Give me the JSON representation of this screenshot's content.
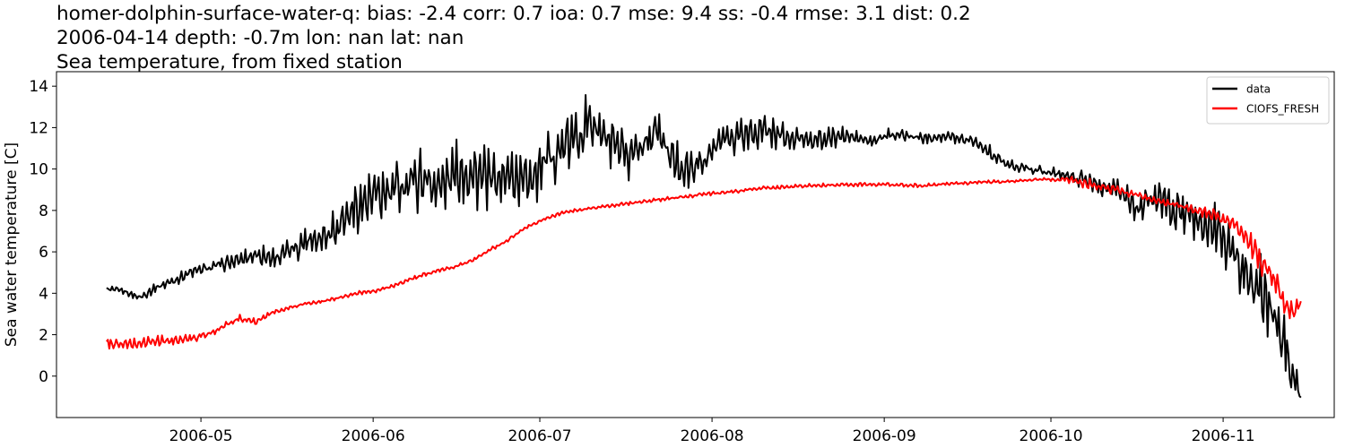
{
  "title_lines": [
    "homer-dolphin-surface-water-q: bias: -2.4  corr: 0.7  ioa: 0.7  mse: 9.4  ss: -0.4  rmse: 3.1  dist: 0.2",
    "2006-04-14 depth: -0.7m lon: nan lat: nan",
    "Sea temperature, from fixed station"
  ],
  "chart_data": {
    "type": "line",
    "title": "homer-dolphin-surface-water-q: bias: -2.4  corr: 0.7  ioa: 0.7  mse: 9.4  ss: -0.4  rmse: 3.1  dist: 0.2\n2006-04-14 depth: -0.7m lon: nan lat: nan\nSea temperature, from fixed station",
    "xlabel": "",
    "ylabel": "Sea water temperature [C]",
    "x_type": "date",
    "xlim": [
      "2006-04-05",
      "2006-11-21"
    ],
    "ylim": [
      -2.0,
      14.7
    ],
    "x_ticks": [
      "2006-05-01",
      "2006-06-01",
      "2006-07-01",
      "2006-08-01",
      "2006-09-01",
      "2006-10-01",
      "2006-11-01"
    ],
    "x_tick_labels": [
      "2006-05",
      "2006-06",
      "2006-07",
      "2006-08",
      "2006-09",
      "2006-10",
      "2006-11"
    ],
    "y_ticks": [
      0,
      2,
      4,
      6,
      8,
      10,
      12,
      14
    ],
    "y_tick_labels": [
      "0",
      "2",
      "4",
      "6",
      "8",
      "10",
      "12",
      "14"
    ],
    "grid": false,
    "legend": "top-right",
    "series": [
      {
        "name": "data",
        "color": "#000000",
        "x": [
          "2006-04-14",
          "2006-04-17",
          "2006-04-20",
          "2006-04-23",
          "2006-04-26",
          "2006-04-29",
          "2006-05-02",
          "2006-05-05",
          "2006-05-08",
          "2006-05-11",
          "2006-05-14",
          "2006-05-17",
          "2006-05-20",
          "2006-05-23",
          "2006-05-26",
          "2006-05-29",
          "2006-06-01",
          "2006-06-04",
          "2006-06-07",
          "2006-06-10",
          "2006-06-13",
          "2006-06-16",
          "2006-06-19",
          "2006-06-22",
          "2006-06-25",
          "2006-06-28",
          "2006-07-01",
          "2006-07-04",
          "2006-07-07",
          "2006-07-10",
          "2006-07-13",
          "2006-07-16",
          "2006-07-19",
          "2006-07-22",
          "2006-07-25",
          "2006-07-28",
          "2006-07-31",
          "2006-08-03",
          "2006-08-06",
          "2006-08-09",
          "2006-08-12",
          "2006-08-15",
          "2006-08-18",
          "2006-08-21",
          "2006-08-24",
          "2006-08-27",
          "2006-08-30",
          "2006-09-02",
          "2006-09-05",
          "2006-09-08",
          "2006-09-11",
          "2006-09-14",
          "2006-09-17",
          "2006-09-20",
          "2006-09-23",
          "2006-09-26",
          "2006-09-29",
          "2006-10-02",
          "2006-10-05",
          "2006-10-08",
          "2006-10-11",
          "2006-10-14",
          "2006-10-17",
          "2006-10-20",
          "2006-10-23",
          "2006-10-26",
          "2006-10-29",
          "2006-11-01",
          "2006-11-04",
          "2006-11-07",
          "2006-11-10",
          "2006-11-13",
          "2006-11-15"
        ],
        "y": [
          4.2,
          4.1,
          3.8,
          4.3,
          4.6,
          5.0,
          5.2,
          5.4,
          5.6,
          5.9,
          5.7,
          6.0,
          6.6,
          6.8,
          7.4,
          8.2,
          8.6,
          8.8,
          9.4,
          9.6,
          9.1,
          9.9,
          9.8,
          9.4,
          9.7,
          9.5,
          10.0,
          10.8,
          11.4,
          12.4,
          11.3,
          10.4,
          11.2,
          11.9,
          10.4,
          9.9,
          10.5,
          11.5,
          11.6,
          11.8,
          11.8,
          11.4,
          11.5,
          11.4,
          11.6,
          11.5,
          11.3,
          11.7,
          11.6,
          11.5,
          11.6,
          11.5,
          11.4,
          10.8,
          10.2,
          10.1,
          9.9,
          9.8,
          9.6,
          9.4,
          9.1,
          8.8,
          8.0,
          8.7,
          8.0,
          7.6,
          7.3,
          6.8,
          5.5,
          4.3,
          3.2,
          0.8,
          -1.0
        ],
        "spread": [
          0.2,
          0.2,
          0.2,
          0.3,
          0.3,
          0.3,
          0.3,
          0.4,
          0.4,
          0.6,
          0.6,
          0.8,
          1.0,
          1.2,
          1.3,
          1.4,
          1.6,
          1.6,
          1.7,
          1.8,
          1.6,
          1.6,
          1.8,
          1.7,
          1.6,
          1.6,
          1.6,
          1.6,
          1.6,
          1.6,
          1.7,
          1.8,
          1.6,
          1.4,
          1.2,
          1.1,
          1.0,
          0.9,
          1.0,
          1.0,
          0.9,
          0.7,
          0.6,
          0.6,
          0.5,
          0.4,
          0.3,
          0.3,
          0.3,
          0.3,
          0.3,
          0.3,
          0.3,
          0.4,
          0.4,
          0.3,
          0.3,
          0.3,
          0.4,
          0.5,
          0.6,
          0.8,
          0.9,
          1.0,
          1.1,
          1.3,
          1.4,
          1.5,
          1.8,
          2.0,
          2.2,
          2.0,
          0.4
        ]
      },
      {
        "name": "CIOFS_FRESH",
        "color": "#ff0000",
        "x": [
          "2006-04-14",
          "2006-04-17",
          "2006-04-20",
          "2006-04-23",
          "2006-04-26",
          "2006-04-29",
          "2006-05-02",
          "2006-05-05",
          "2006-05-08",
          "2006-05-11",
          "2006-05-14",
          "2006-05-17",
          "2006-05-20",
          "2006-05-23",
          "2006-05-26",
          "2006-05-29",
          "2006-06-01",
          "2006-06-04",
          "2006-06-07",
          "2006-06-10",
          "2006-06-13",
          "2006-06-16",
          "2006-06-19",
          "2006-06-22",
          "2006-06-25",
          "2006-06-28",
          "2006-07-01",
          "2006-07-04",
          "2006-07-07",
          "2006-07-10",
          "2006-07-13",
          "2006-07-16",
          "2006-07-19",
          "2006-07-22",
          "2006-07-25",
          "2006-07-28",
          "2006-07-31",
          "2006-08-03",
          "2006-08-06",
          "2006-08-09",
          "2006-08-12",
          "2006-08-15",
          "2006-08-18",
          "2006-08-21",
          "2006-08-24",
          "2006-08-27",
          "2006-08-30",
          "2006-09-02",
          "2006-09-05",
          "2006-09-08",
          "2006-09-11",
          "2006-09-14",
          "2006-09-17",
          "2006-09-20",
          "2006-09-23",
          "2006-09-26",
          "2006-09-29",
          "2006-10-02",
          "2006-10-05",
          "2006-10-08",
          "2006-10-11",
          "2006-10-14",
          "2006-10-17",
          "2006-10-20",
          "2006-10-23",
          "2006-10-26",
          "2006-10-29",
          "2006-11-01",
          "2006-11-04",
          "2006-11-07",
          "2006-11-10",
          "2006-11-13",
          "2006-11-15"
        ],
        "y": [
          1.6,
          1.5,
          1.6,
          1.7,
          1.7,
          1.8,
          2.0,
          2.4,
          2.8,
          2.6,
          3.1,
          3.3,
          3.5,
          3.6,
          3.8,
          4.0,
          4.1,
          4.3,
          4.6,
          4.9,
          5.1,
          5.3,
          5.6,
          6.1,
          6.5,
          7.1,
          7.5,
          7.8,
          8.0,
          8.1,
          8.2,
          8.3,
          8.4,
          8.5,
          8.6,
          8.7,
          8.8,
          8.85,
          8.95,
          9.05,
          9.1,
          9.15,
          9.2,
          9.22,
          9.25,
          9.25,
          9.25,
          9.25,
          9.22,
          9.2,
          9.25,
          9.3,
          9.35,
          9.38,
          9.4,
          9.45,
          9.5,
          9.5,
          9.45,
          9.3,
          9.1,
          8.9,
          8.7,
          8.5,
          8.3,
          8.1,
          7.9,
          7.6,
          7.1,
          6.0,
          4.8,
          3.0,
          3.4
        ],
        "spread": [
          0.3,
          0.3,
          0.3,
          0.3,
          0.3,
          0.3,
          0.2,
          0.2,
          0.2,
          0.2,
          0.1,
          0.1,
          0.1,
          0.1,
          0.1,
          0.1,
          0.1,
          0.1,
          0.1,
          0.1,
          0.1,
          0.1,
          0.1,
          0.1,
          0.1,
          0.1,
          0.1,
          0.1,
          0.1,
          0.1,
          0.1,
          0.1,
          0.1,
          0.1,
          0.1,
          0.1,
          0.1,
          0.1,
          0.1,
          0.1,
          0.1,
          0.1,
          0.1,
          0.1,
          0.1,
          0.1,
          0.1,
          0.1,
          0.1,
          0.1,
          0.1,
          0.1,
          0.1,
          0.1,
          0.1,
          0.1,
          0.1,
          0.1,
          0.3,
          0.4,
          0.3,
          0.2,
          0.2,
          0.2,
          0.2,
          0.2,
          0.3,
          0.4,
          0.6,
          0.8,
          0.9,
          0.8,
          0.4
        ]
      }
    ]
  }
}
